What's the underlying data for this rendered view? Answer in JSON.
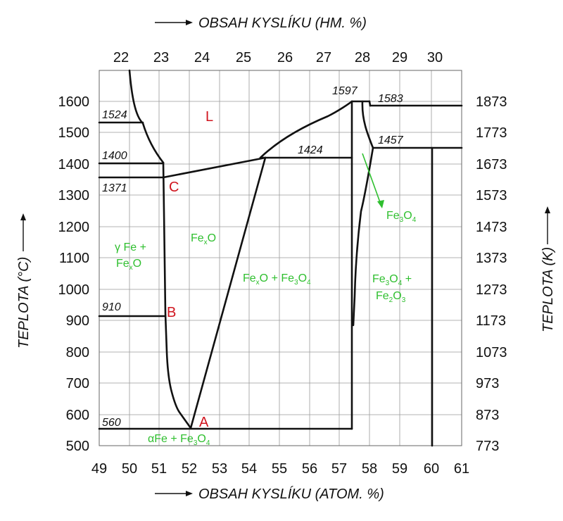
{
  "titles": {
    "top": "OBSAH KYSLÍKU (HM. %)",
    "bottom": "OBSAH KYSLÍKU (ATOM. %)",
    "left": "TEPLOTA (°C)",
    "right": "TEPLOTA (K)"
  },
  "axes": {
    "bottom_ticks": [
      "49",
      "50",
      "51",
      "52",
      "53",
      "54",
      "55",
      "56",
      "57",
      "58",
      "59",
      "60",
      "61"
    ],
    "top_ticks": [
      "22",
      "23",
      "24",
      "25",
      "26",
      "27",
      "28",
      "29",
      "30"
    ],
    "left_ticks": [
      "500",
      "600",
      "700",
      "800",
      "900",
      "1000",
      "1100",
      "1200",
      "1300",
      "1400",
      "1500",
      "1600"
    ],
    "right_ticks": [
      "773",
      "873",
      "973",
      "1073",
      "1173",
      "1273",
      "1373",
      "1473",
      "1573",
      "1673",
      "1773",
      "1873"
    ]
  },
  "temperatures": {
    "t1524": "1524",
    "t1400": "1400",
    "t1371": "1371",
    "t910": "910",
    "t560": "560",
    "t1424": "1424",
    "t1597": "1597",
    "t1583": "1583",
    "t1457": "1457"
  },
  "points": {
    "A": "A",
    "B": "B",
    "C": "C",
    "L": "L"
  },
  "phases": {
    "gamma_fe_line1": "γ Fe +",
    "gamma_fe_base": "Fe",
    "gamma_fe_sub": "x",
    "gamma_fe_end": "O",
    "fexo_base": "Fe",
    "fexo_sub": "x",
    "fexo_end": "O",
    "fexo_fe3o4_a": "Fe",
    "fexo_fe3o4_sub1": "x",
    "fexo_fe3o4_b": "O + Fe",
    "fexo_fe3o4_sub2": "3",
    "fexo_fe3o4_c": "O",
    "fexo_fe3o4_sub3": "4",
    "fe3o4_a": "Fe",
    "fe3o4_sub1": "3",
    "fe3o4_b": "O",
    "fe3o4_sub2": "4",
    "fe3o4_fe2o3_l1a": "Fe",
    "fe3o4_fe2o3_l1s1": "3",
    "fe3o4_fe2o3_l1b": "O",
    "fe3o4_fe2o3_l1s2": "4",
    "fe3o4_fe2o3_l1c": " +",
    "fe3o4_fe2o3_l2a": "Fe",
    "fe3o4_fe2o3_l2s1": "2",
    "fe3o4_fe2o3_l2b": "O",
    "fe3o4_fe2o3_l2s2": "3",
    "alpha_a": "αFe + Fe",
    "alpha_s1": "3",
    "alpha_b": "O",
    "alpha_s2": "4"
  },
  "colors": {
    "point_labels": "#d0141e",
    "phase_labels": "#2fbf2f",
    "lines": "#111111"
  }
}
